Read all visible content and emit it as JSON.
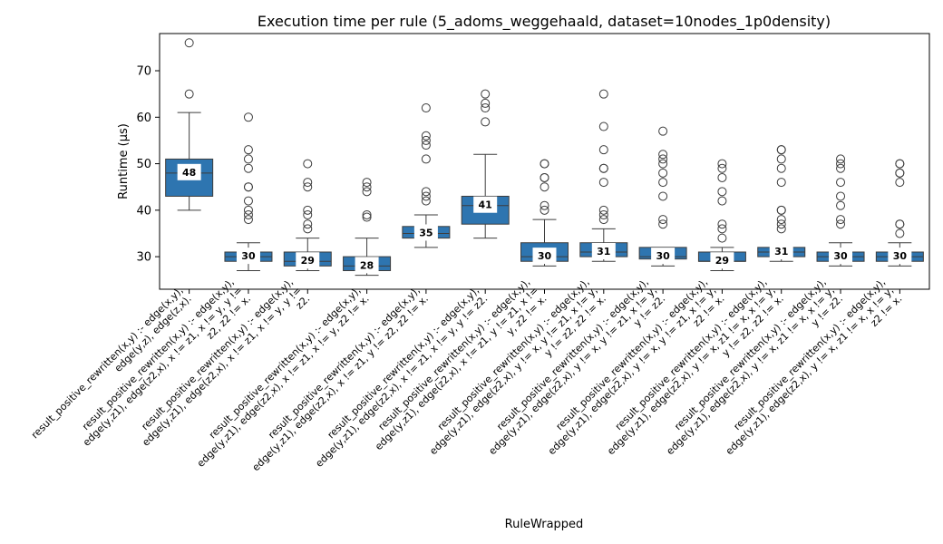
{
  "chart_data": {
    "type": "box",
    "title": "Execution time per rule (5_adoms_weggehaald, dataset=10nodes_1p0density)",
    "xlabel": "RuleWrapped",
    "ylabel": "Runtime (µs)",
    "ylim": [
      23,
      78
    ],
    "yticks": [
      30,
      40,
      50,
      60,
      70
    ],
    "grid": false,
    "box_color": "#2e75b0",
    "categories": [
      {
        "label": [
          "result_positive_rewritten(x,y) :-    edge(x,y),",
          "edge(y,z),    edge(z,x)."
        ]
      },
      {
        "label": [
          "result_positive_rewritten(x,y) :-    edge(x,y),",
          "edge(y,z1),   edge(z2,x),   x != z1,   x != y,   y !=",
          "z2,   z2 != x."
        ]
      },
      {
        "label": [
          "result_positive_rewritten(x,y) :-    edge(x,y),",
          "edge(y,z1),   edge(z2,x),   x != z1,   x != y,   y !=",
          "z2."
        ]
      },
      {
        "label": [
          "result_positive_rewritten(x,y) :-    edge(x,y),",
          "edge(y,z1),   edge(z2,x),   x != z1,   x != y,   z2 != x."
        ]
      },
      {
        "label": [
          "result_positive_rewritten(x,y) :-    edge(x,y),",
          "edge(y,z1),   edge(z2,x),   x != z1,   y != z2,   z2 != x."
        ]
      },
      {
        "label": [
          "result_positive_rewritten(x,y) :-    edge(x,y),",
          "edge(y,z1),   edge(z2,x),   x != z1,   x != y,   y != z2."
        ]
      },
      {
        "label": [
          "result_positive_rewritten(x,y) :-    edge(x,y),",
          "edge(y,z1),   edge(z2,x),   x != z1,   y != z1,   x !=",
          "y,   z2 != x."
        ]
      },
      {
        "label": [
          "result_positive_rewritten(x,y) :-    edge(x,y),",
          "edge(y,z1),   edge(z2,x),   y != x,   y != z1,   x != y,",
          "y != z2,   z2 != x."
        ]
      },
      {
        "label": [
          "result_positive_rewritten(x,y) :-    edge(x,y),",
          "edge(y,z1),   edge(z2,x),   y != x,   y != z1,   x != y,",
          "y != z2."
        ]
      },
      {
        "label": [
          "result_positive_rewritten(x,y) :-    edge(x,y),",
          "edge(y,z1),   edge(z2,x),   y != x,   y != z1,   x != y,",
          "z2 != x."
        ]
      },
      {
        "label": [
          "result_positive_rewritten(x,y) :-    edge(x,y),",
          "edge(y,z1),   edge(z2,x),   y != x,   z1 != x,   x != y,",
          "y != z2,   z2 != x."
        ]
      },
      {
        "label": [
          "result_positive_rewritten(x,y) :-    edge(x,y),",
          "edge(y,z1),   edge(z2,x),   y != x,   z1 != x,   x != y,",
          "y != z2."
        ]
      },
      {
        "label": [
          "result_positive_rewritten(x,y) :-    edge(x,y),",
          "edge(y,z1),   edge(z2,x),   y != x,   z1 != x,   x != y,",
          "z2 != x."
        ]
      }
    ],
    "boxes": [
      {
        "whisker_low": 40,
        "q1": 43,
        "median": 48,
        "q3": 51,
        "whisker_high": 61,
        "median_label": "48",
        "outliers": [
          65,
          76
        ]
      },
      {
        "whisker_low": 27,
        "q1": 29,
        "median": 30,
        "q3": 31,
        "whisker_high": 33,
        "median_label": "30",
        "outliers": [
          38,
          39,
          40,
          42,
          45,
          45,
          49,
          51,
          53,
          60
        ]
      },
      {
        "whisker_low": 27,
        "q1": 28,
        "median": 29,
        "q3": 31,
        "whisker_high": 34,
        "median_label": "29",
        "outliers": [
          36,
          37,
          39,
          40,
          45,
          46,
          50
        ]
      },
      {
        "whisker_low": 26,
        "q1": 27,
        "median": 28,
        "q3": 30,
        "whisker_high": 34,
        "median_label": "28",
        "outliers": [
          38.5,
          39,
          44,
          45,
          46
        ]
      },
      {
        "whisker_low": 32,
        "q1": 34,
        "median": 35,
        "q3": 36.5,
        "whisker_high": 39,
        "median_label": "35",
        "outliers": [
          42,
          43,
          44,
          51,
          54,
          55,
          56,
          62
        ]
      },
      {
        "whisker_low": 34,
        "q1": 37,
        "median": 41,
        "q3": 43,
        "whisker_high": 52,
        "median_label": "41",
        "outliers": [
          59,
          62,
          63,
          65
        ]
      },
      {
        "whisker_low": 28,
        "q1": 29,
        "median": 30,
        "q3": 33,
        "whisker_high": 38,
        "median_label": "30",
        "outliers": [
          40,
          41,
          45,
          47,
          47,
          50,
          50
        ]
      },
      {
        "whisker_low": 29,
        "q1": 30,
        "median": 31,
        "q3": 33,
        "whisker_high": 36,
        "median_label": "31",
        "outliers": [
          38,
          39,
          40,
          46,
          49,
          49,
          53,
          58,
          65
        ]
      },
      {
        "whisker_low": 28,
        "q1": 29.5,
        "median": 30,
        "q3": 32,
        "whisker_high": 32,
        "median_label": "30",
        "outliers": [
          37,
          38,
          43,
          46,
          48,
          50,
          51,
          52,
          57
        ]
      },
      {
        "whisker_low": 27,
        "q1": 29,
        "median": 29,
        "q3": 31,
        "whisker_high": 32,
        "median_label": "29",
        "outliers": [
          34,
          36,
          37,
          42,
          44,
          47,
          49,
          50
        ]
      },
      {
        "whisker_low": 29,
        "q1": 30,
        "median": 31,
        "q3": 32,
        "whisker_high": 32,
        "median_label": "31",
        "outliers": [
          36,
          37,
          38,
          40,
          40,
          46,
          49,
          51,
          53,
          53
        ]
      },
      {
        "whisker_low": 28,
        "q1": 29,
        "median": 30,
        "q3": 31,
        "whisker_high": 33,
        "median_label": "30",
        "outliers": [
          37,
          38,
          41,
          43,
          46,
          49,
          50,
          51
        ]
      },
      {
        "whisker_low": 28,
        "q1": 29,
        "median": 30,
        "q3": 31,
        "whisker_high": 33,
        "median_label": "30",
        "outliers": [
          35,
          37,
          37,
          46,
          48,
          48,
          50,
          50
        ]
      }
    ]
  }
}
